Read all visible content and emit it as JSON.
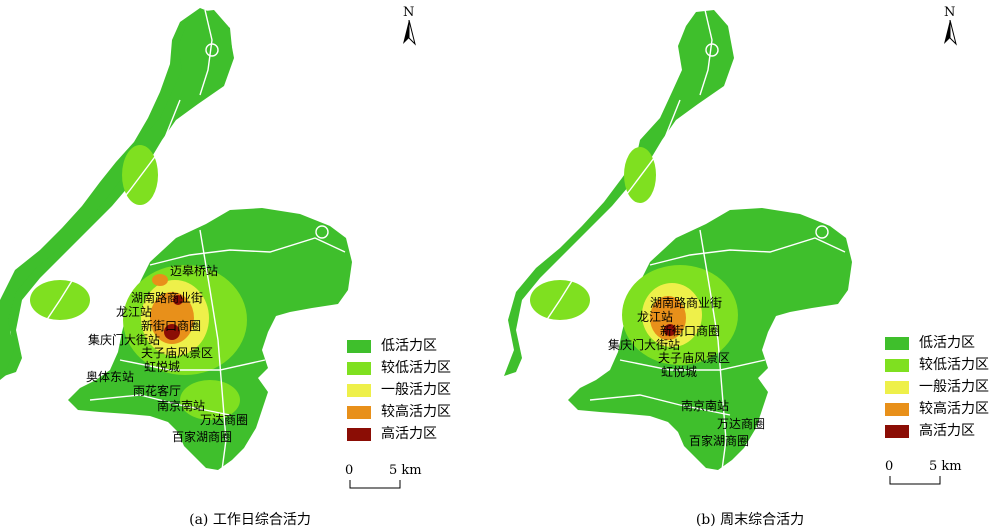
{
  "colors": {
    "low": "#3fbf2c",
    "lower": "#7fe020",
    "medium": "#eef04a",
    "higher": "#e8901a",
    "high": "#8b0d05",
    "road": "#ffffff"
  },
  "legend": [
    {
      "label": "低活力区",
      "level": "low"
    },
    {
      "label": "较低活力区",
      "level": "lower"
    },
    {
      "label": "一般活力区",
      "level": "medium"
    },
    {
      "label": "较高活力区",
      "level": "higher"
    },
    {
      "label": "高活力区",
      "level": "high"
    }
  ],
  "north_label": "N",
  "scale": {
    "zero": "0",
    "five": "5 km"
  },
  "panels": [
    {
      "caption": "(a) 工作日综合活力",
      "places": [
        "迈皋桥站",
        "湖南路商业街",
        "龙江站",
        "新街口商圈",
        "集庆门大街站",
        "夫子庙风景区",
        "虹悦城",
        "奥体东站",
        "雨花客厅",
        "南京南站",
        "万达商圈",
        "百家湖商圈"
      ]
    },
    {
      "caption": "(b) 周末综合活力",
      "places": [
        "湖南路商业街",
        "龙江站",
        "新街口商圈",
        "集庆门大街站",
        "夫子庙风景区",
        "虹悦城",
        "南京南站",
        "万达商圈",
        "百家湖商圈"
      ]
    }
  ]
}
